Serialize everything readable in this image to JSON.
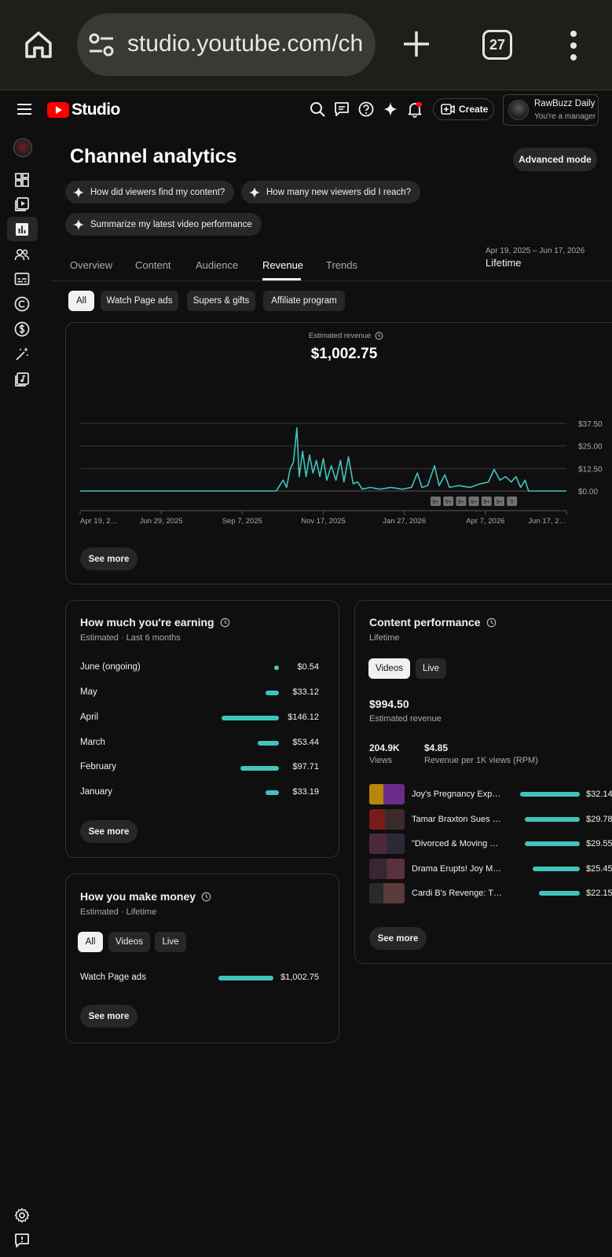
{
  "browser": {
    "url": "studio.youtube.com/ch",
    "tab_count": "27"
  },
  "header": {
    "logo_text": "Studio",
    "create_label": "Create",
    "account_name": "RawBuzz Daily",
    "account_role": "You're a manager"
  },
  "page": {
    "title": "Channel analytics",
    "advanced_mode": "Advanced mode",
    "ai_chips": [
      "How did viewers find my content?",
      "How many new viewers did I reach?",
      "Summarize my latest video performance"
    ],
    "tabs": [
      "Overview",
      "Content",
      "Audience",
      "Revenue",
      "Trends"
    ],
    "active_tab": "Revenue",
    "date_range": "Apr 19, 2025 – Jun 17, 2026",
    "date_mode": "Lifetime",
    "filters": [
      "All",
      "Watch Page ads",
      "Supers & gifts",
      "Affiliate program"
    ],
    "selected_filter": "All"
  },
  "revenue_card": {
    "metric_label": "Estimated revenue",
    "metric_value": "$1,002.75",
    "see_more": "See more"
  },
  "chart_data": {
    "type": "line",
    "title": "",
    "y_ticks": [
      "$37.50",
      "$25.00",
      "$12.50",
      "$0.00"
    ],
    "ylim": [
      0,
      37.5
    ],
    "x_ticks": [
      "Apr 19, 2…",
      "Jun 29, 2025",
      "Sep 7, 2025",
      "Nov 17, 2025",
      "Jan 27, 2026",
      "Apr 7, 2026",
      "Jun 17, 2…"
    ],
    "x_range": [
      "2025-04-19",
      "2026-06-17"
    ],
    "series": [
      {
        "color": "#40c4bd",
        "points": [
          [
            "2025-04-19",
            0
          ],
          [
            "2025-10-07",
            0
          ],
          [
            "2025-10-10",
            3
          ],
          [
            "2025-10-13",
            6
          ],
          [
            "2025-10-16",
            2
          ],
          [
            "2025-10-19",
            12
          ],
          [
            "2025-10-22",
            16
          ],
          [
            "2025-10-25",
            35
          ],
          [
            "2025-10-27",
            8
          ],
          [
            "2025-10-30",
            22
          ],
          [
            "2025-11-02",
            8
          ],
          [
            "2025-11-05",
            20
          ],
          [
            "2025-11-08",
            10
          ],
          [
            "2025-11-11",
            17
          ],
          [
            "2025-11-14",
            8
          ],
          [
            "2025-11-17",
            18
          ],
          [
            "2025-11-20",
            6
          ],
          [
            "2025-11-24",
            14
          ],
          [
            "2025-11-28",
            6
          ],
          [
            "2025-12-02",
            17
          ],
          [
            "2025-12-05",
            5
          ],
          [
            "2025-12-09",
            19
          ],
          [
            "2025-12-13",
            4
          ],
          [
            "2025-12-17",
            5
          ],
          [
            "2025-12-21",
            1
          ],
          [
            "2025-12-28",
            2
          ],
          [
            "2026-01-05",
            1
          ],
          [
            "2026-01-15",
            2
          ],
          [
            "2026-01-25",
            1
          ],
          [
            "2026-02-02",
            2
          ],
          [
            "2026-02-07",
            10
          ],
          [
            "2026-02-11",
            2
          ],
          [
            "2026-02-16",
            3
          ],
          [
            "2026-02-22",
            14
          ],
          [
            "2026-02-26",
            3
          ],
          [
            "2026-03-03",
            9
          ],
          [
            "2026-03-07",
            2
          ],
          [
            "2026-03-15",
            3
          ],
          [
            "2026-03-25",
            2
          ],
          [
            "2026-04-03",
            4
          ],
          [
            "2026-04-10",
            5
          ],
          [
            "2026-04-15",
            12
          ],
          [
            "2026-04-20",
            6
          ],
          [
            "2026-04-25",
            8
          ],
          [
            "2026-04-30",
            5
          ],
          [
            "2026-05-04",
            8
          ],
          [
            "2026-05-08",
            2
          ],
          [
            "2026-05-12",
            6
          ],
          [
            "2026-05-15",
            0
          ],
          [
            "2026-06-17",
            0
          ]
        ]
      }
    ],
    "annotation_markers": [
      "9+",
      "9+",
      "9+",
      "9+",
      "9+",
      "9+",
      "5"
    ],
    "grid": true
  },
  "earning_card": {
    "title": "How much you're earning",
    "subtitle": "Estimated · Last 6 months",
    "rows": [
      {
        "label": "June (ongoing)",
        "value": "$0.54",
        "amount": 0.54
      },
      {
        "label": "May",
        "value": "$33.12",
        "amount": 33.12
      },
      {
        "label": "April",
        "value": "$146.12",
        "amount": 146.12
      },
      {
        "label": "March",
        "value": "$53.44",
        "amount": 53.44
      },
      {
        "label": "February",
        "value": "$97.71",
        "amount": 97.71
      },
      {
        "label": "January",
        "value": "$33.19",
        "amount": 33.19
      }
    ],
    "see_more": "See more"
  },
  "money_card": {
    "title": "How you make money",
    "subtitle": "Estimated · Lifetime",
    "chips": [
      "All",
      "Videos",
      "Live"
    ],
    "selected_chip": "All",
    "rows": [
      {
        "label": "Watch Page ads",
        "value": "$1,002.75",
        "amount": 1002.75
      }
    ],
    "see_more": "See more"
  },
  "content_card": {
    "title": "Content performance",
    "subtitle": "Lifetime",
    "chips": [
      "Videos",
      "Live"
    ],
    "selected_chip": "Videos",
    "revenue_value": "$994.50",
    "revenue_label": "Estimated revenue",
    "views_value": "204.9K",
    "views_label": "Views",
    "rpm_value": "$4.85",
    "rpm_label": "Revenue per 1K views (RPM)",
    "videos": [
      {
        "title": "Joy's Pregnancy Exp…",
        "value": "$32.14",
        "amount": 32.14
      },
      {
        "title": "Tamar Braxton Sues …",
        "value": "$29.78",
        "amount": 29.78
      },
      {
        "title": "\"Divorced & Moving …",
        "value": "$29.55",
        "amount": 29.55
      },
      {
        "title": "Drama Erupts! Joy M…",
        "value": "$25.45",
        "amount": 25.45
      },
      {
        "title": "Cardi B's Revenge: T…",
        "value": "$22.15",
        "amount": 22.15
      }
    ],
    "see_more": "See more"
  },
  "colors": {
    "accent": "#40c4bd",
    "background": "#0f0f0f",
    "logo_red": "#ff0000"
  }
}
